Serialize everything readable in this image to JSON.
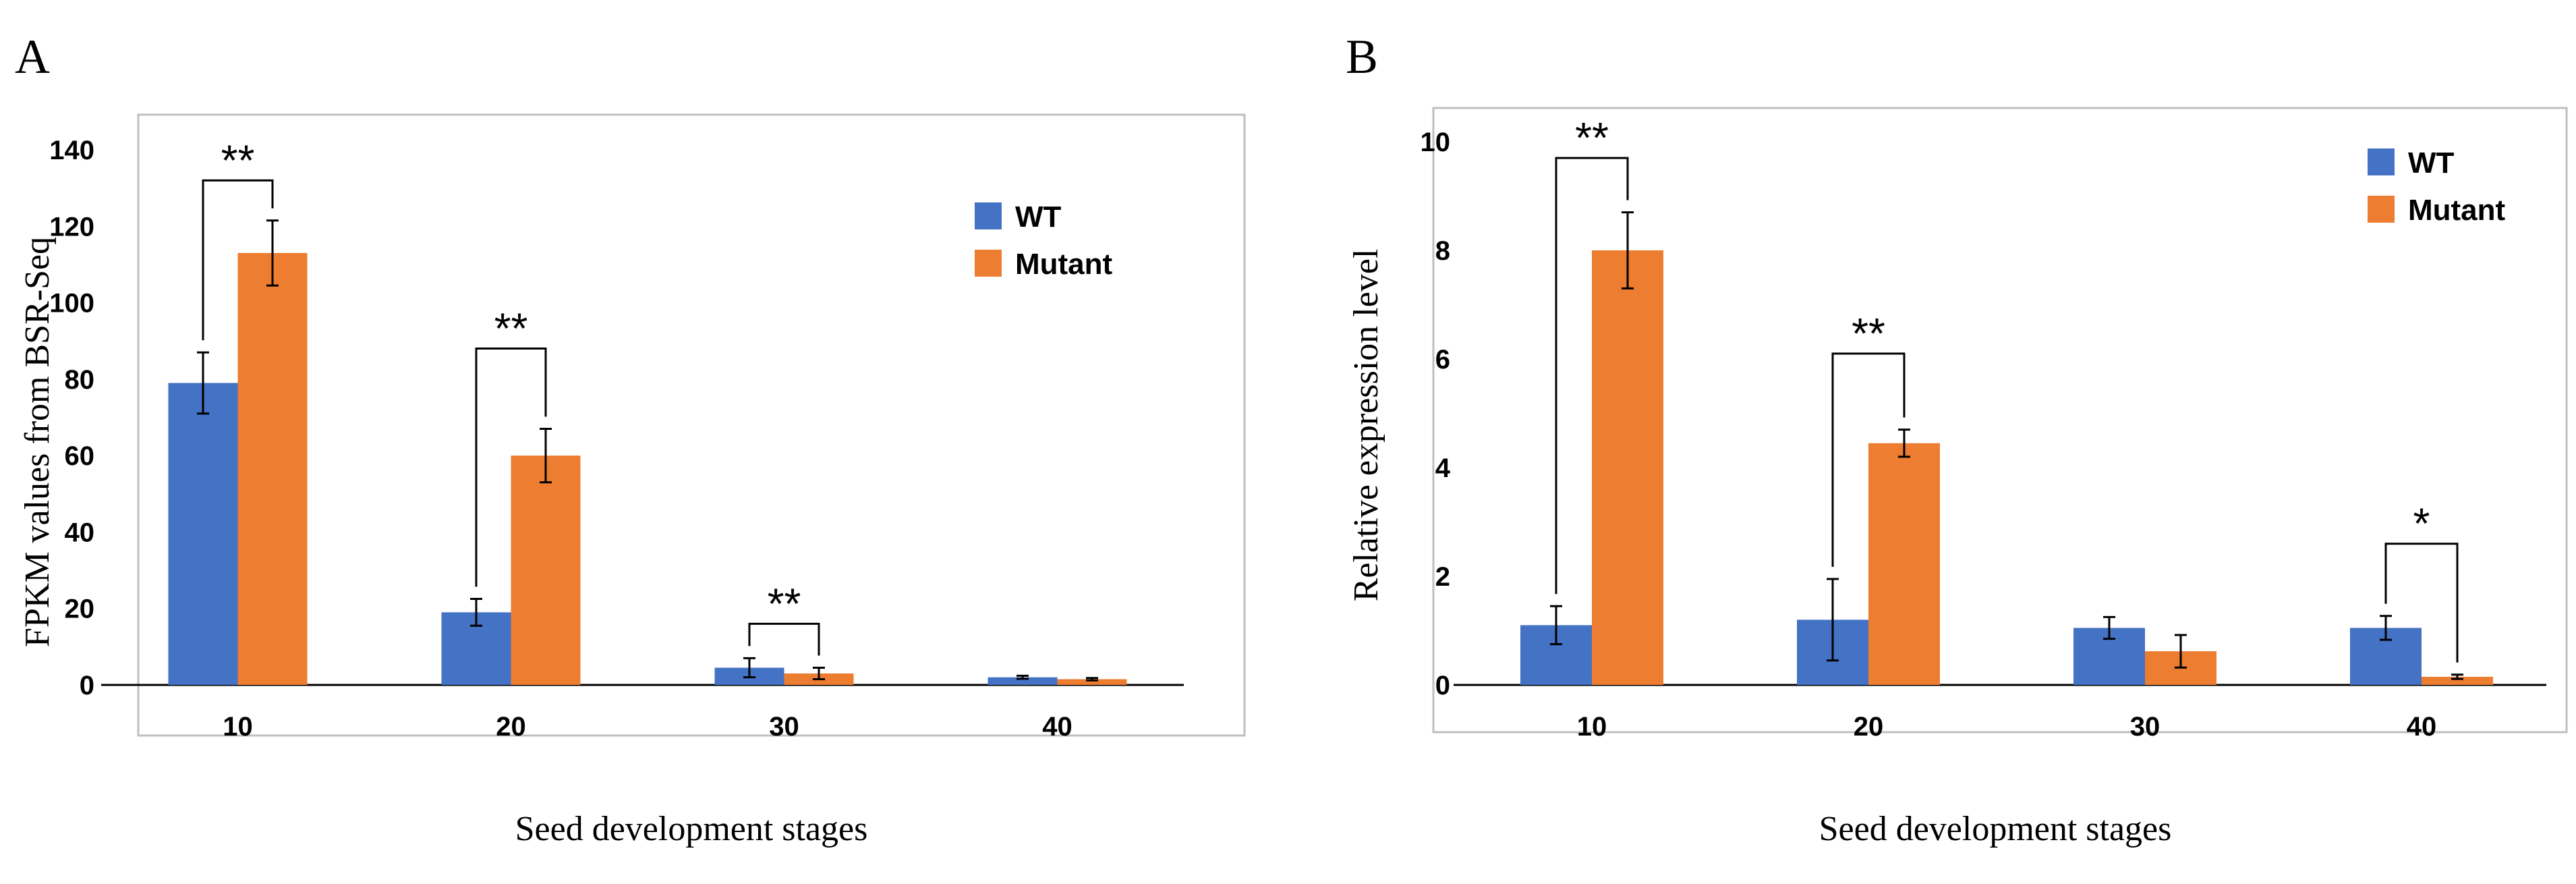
{
  "chart_data": [
    {
      "panel": "A",
      "type": "bar",
      "categories": [
        "10",
        "20",
        "30",
        "40"
      ],
      "series": [
        {
          "name": "WT",
          "color": "#4472C4",
          "values": [
            79,
            19,
            4.5,
            2
          ],
          "errors": [
            8,
            3.5,
            2.5,
            0.4
          ]
        },
        {
          "name": "Mutant",
          "color": "#ED7D31",
          "values": [
            113,
            60,
            3,
            1.5
          ],
          "errors": [
            8.5,
            7,
            1.5,
            0.3
          ]
        }
      ],
      "significance": [
        "**",
        "**",
        "**",
        ""
      ],
      "xlabel": "Seed development stages",
      "ylabel": "FPKM values from BSR-Seq",
      "ylim": [
        0,
        140
      ],
      "yticks": [
        "0",
        "20",
        "40",
        "60",
        "80",
        "100",
        "120",
        "140"
      ],
      "legend": "top-right"
    },
    {
      "panel": "B",
      "type": "bar",
      "categories": [
        "10",
        "20",
        "30",
        "40"
      ],
      "series": [
        {
          "name": "WT",
          "color": "#4472C4",
          "values": [
            1.1,
            1.2,
            1.05,
            1.05
          ],
          "errors": [
            0.35,
            0.75,
            0.2,
            0.22
          ]
        },
        {
          "name": "Mutant",
          "color": "#ED7D31",
          "values": [
            8.0,
            4.45,
            0.62,
            0.15
          ],
          "errors": [
            0.7,
            0.25,
            0.3,
            0.04
          ]
        }
      ],
      "significance": [
        "**",
        "**",
        "",
        "*"
      ],
      "xlabel": "Seed development stages",
      "ylabel": "Relative expression level",
      "ylim": [
        0,
        10
      ],
      "yticks": [
        "0",
        "2",
        "4",
        "6",
        "8",
        "10"
      ],
      "legend": "top-right"
    }
  ]
}
